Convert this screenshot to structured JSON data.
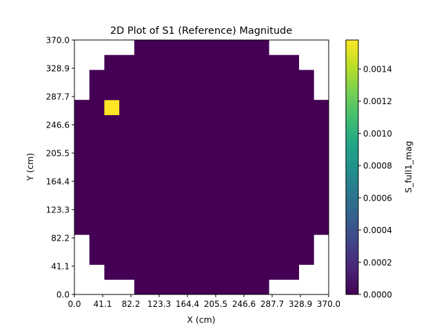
{
  "chart_data": {
    "type": "heatmap",
    "title": "2D Plot of S1 (Reference) Magnitude",
    "xlabel": "X (cm)",
    "ylabel": "Y (cm)",
    "xlim": [
      0.0,
      370.0
    ],
    "ylim": [
      0.0,
      370.0
    ],
    "x_ticks": [
      "0.0",
      "41.1",
      "82.2",
      "123.3",
      "164.4",
      "205.5",
      "246.6",
      "287.7",
      "328.9",
      "370.0"
    ],
    "y_ticks": [
      "0.0",
      "41.1",
      "82.2",
      "123.3",
      "164.4",
      "205.5",
      "246.6",
      "287.7",
      "328.9",
      "370.0"
    ],
    "grid": false,
    "grid_size": [
      17,
      17
    ],
    "row_spans": [
      {
        "row": 0,
        "first_col": 4,
        "last_col": 12
      },
      {
        "row": 1,
        "first_col": 2,
        "last_col": 14
      },
      {
        "row": 2,
        "first_col": 1,
        "last_col": 15
      },
      {
        "row": 3,
        "first_col": 1,
        "last_col": 15
      },
      {
        "row": 4,
        "first_col": 0,
        "last_col": 16
      },
      {
        "row": 5,
        "first_col": 0,
        "last_col": 16
      },
      {
        "row": 6,
        "first_col": 0,
        "last_col": 16
      },
      {
        "row": 7,
        "first_col": 0,
        "last_col": 16
      },
      {
        "row": 8,
        "first_col": 0,
        "last_col": 16
      },
      {
        "row": 9,
        "first_col": 0,
        "last_col": 16
      },
      {
        "row": 10,
        "first_col": 0,
        "last_col": 16
      },
      {
        "row": 11,
        "first_col": 0,
        "last_col": 16
      },
      {
        "row": 12,
        "first_col": 0,
        "last_col": 16
      },
      {
        "row": 13,
        "first_col": 1,
        "last_col": 15
      },
      {
        "row": 14,
        "first_col": 1,
        "last_col": 15
      },
      {
        "row": 15,
        "first_col": 2,
        "last_col": 14
      },
      {
        "row": 16,
        "first_col": 4,
        "last_col": 12
      }
    ],
    "background_value": 0.0,
    "peaks": [
      {
        "row": 12,
        "col": 2,
        "value": 0.00158
      }
    ],
    "colorbar": {
      "label": "S_full1_mag",
      "colormap": "viridis",
      "vmin": 0.0,
      "vmax": 0.00158,
      "ticks": [
        0.0,
        0.0002,
        0.0004,
        0.0006,
        0.0008,
        0.001,
        0.0012,
        0.0014
      ],
      "tick_labels": [
        "0.0000",
        "0.0002",
        "0.0004",
        "0.0006",
        "0.0008",
        "0.0010",
        "0.0012",
        "0.0014"
      ]
    },
    "colors": {
      "background": "#440154",
      "peak": "#fde725",
      "axis": "#000000"
    }
  }
}
